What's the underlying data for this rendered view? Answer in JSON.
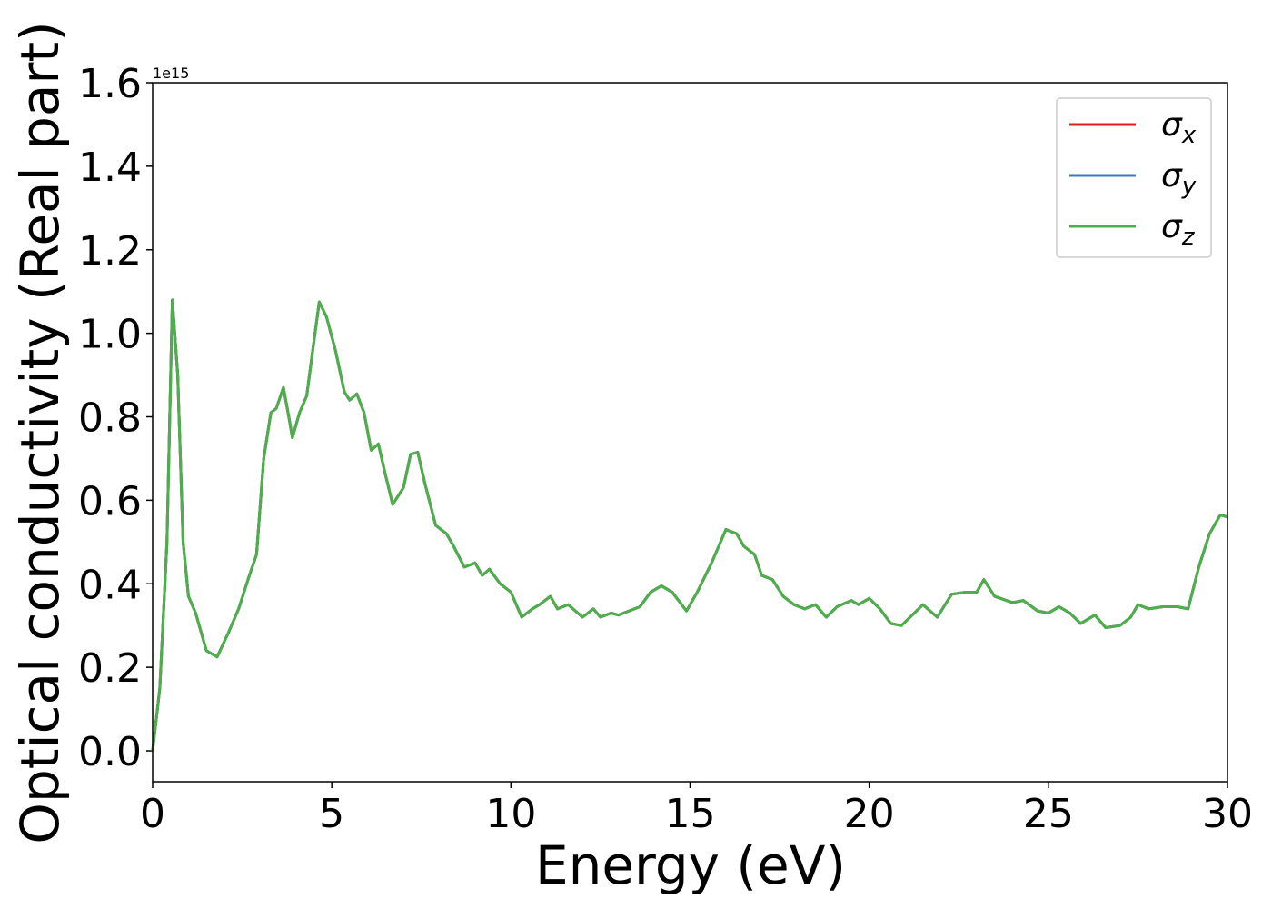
{
  "chart_data": {
    "type": "line",
    "xlabel": "Energy (eV)",
    "ylabel": "Optical conductivity (Real part)",
    "y_offset_text": "1e15",
    "x": [
      0,
      0.2,
      0.4,
      0.55,
      0.7,
      0.85,
      1.0,
      1.2,
      1.5,
      1.8,
      2.1,
      2.4,
      2.7,
      2.9,
      3.1,
      3.3,
      3.45,
      3.65,
      3.8,
      3.9,
      4.1,
      4.3,
      4.5,
      4.65,
      4.85,
      5.1,
      5.35,
      5.5,
      5.7,
      5.9,
      6.1,
      6.3,
      6.5,
      6.7,
      7.0,
      7.2,
      7.4,
      7.6,
      7.9,
      8.2,
      8.4,
      8.7,
      9.0,
      9.2,
      9.4,
      9.7,
      10.0,
      10.3,
      10.6,
      10.8,
      11.1,
      11.3,
      11.6,
      12.0,
      12.3,
      12.5,
      12.8,
      13.0,
      13.3,
      13.6,
      13.9,
      14.2,
      14.5,
      14.9,
      15.2,
      15.6,
      16.0,
      16.3,
      16.5,
      16.8,
      17.0,
      17.3,
      17.6,
      17.9,
      18.2,
      18.5,
      18.8,
      19.1,
      19.5,
      19.7,
      20.0,
      20.3,
      20.6,
      20.9,
      21.2,
      21.5,
      21.9,
      22.3,
      22.7,
      23.0,
      23.2,
      23.5,
      24.0,
      24.3,
      24.7,
      25.0,
      25.3,
      25.6,
      25.9,
      26.3,
      26.6,
      27.0,
      27.3,
      27.5,
      27.8,
      28.2,
      28.6,
      28.9,
      29.2,
      29.5,
      29.8,
      30.0
    ],
    "series": [
      {
        "name": "σx",
        "color": "#e41a1c",
        "values": [
          0,
          0.15,
          0.5,
          1.08,
          0.9,
          0.5,
          0.37,
          0.33,
          0.24,
          0.225,
          0.28,
          0.34,
          0.42,
          0.47,
          0.7,
          0.81,
          0.82,
          0.87,
          0.8,
          0.75,
          0.81,
          0.85,
          0.98,
          1.075,
          1.04,
          0.96,
          0.86,
          0.84,
          0.855,
          0.81,
          0.72,
          0.735,
          0.66,
          0.59,
          0.63,
          0.71,
          0.715,
          0.64,
          0.54,
          0.52,
          0.49,
          0.44,
          0.45,
          0.42,
          0.435,
          0.4,
          0.38,
          0.32,
          0.34,
          0.35,
          0.37,
          0.34,
          0.35,
          0.32,
          0.34,
          0.32,
          0.33,
          0.325,
          0.335,
          0.345,
          0.38,
          0.395,
          0.38,
          0.335,
          0.38,
          0.45,
          0.53,
          0.52,
          0.49,
          0.47,
          0.42,
          0.41,
          0.37,
          0.35,
          0.34,
          0.35,
          0.32,
          0.345,
          0.36,
          0.35,
          0.365,
          0.34,
          0.305,
          0.3,
          0.325,
          0.35,
          0.32,
          0.375,
          0.38,
          0.38,
          0.41,
          0.37,
          0.355,
          0.36,
          0.335,
          0.33,
          0.345,
          0.33,
          0.305,
          0.325,
          0.295,
          0.3,
          0.32,
          0.35,
          0.34,
          0.345,
          0.345,
          0.34,
          0.44,
          0.52,
          0.565,
          0.56
        ]
      },
      {
        "name": "σy",
        "color": "#377eb8",
        "values": [
          0,
          0.15,
          0.5,
          1.08,
          0.9,
          0.5,
          0.37,
          0.33,
          0.24,
          0.225,
          0.28,
          0.34,
          0.42,
          0.47,
          0.7,
          0.81,
          0.82,
          0.87,
          0.8,
          0.75,
          0.81,
          0.85,
          0.98,
          1.075,
          1.04,
          0.96,
          0.86,
          0.84,
          0.855,
          0.81,
          0.72,
          0.735,
          0.66,
          0.59,
          0.63,
          0.71,
          0.715,
          0.64,
          0.54,
          0.52,
          0.49,
          0.44,
          0.45,
          0.42,
          0.435,
          0.4,
          0.38,
          0.32,
          0.34,
          0.35,
          0.37,
          0.34,
          0.35,
          0.32,
          0.34,
          0.32,
          0.33,
          0.325,
          0.335,
          0.345,
          0.38,
          0.395,
          0.38,
          0.335,
          0.38,
          0.45,
          0.53,
          0.52,
          0.49,
          0.47,
          0.42,
          0.41,
          0.37,
          0.35,
          0.34,
          0.35,
          0.32,
          0.345,
          0.36,
          0.35,
          0.365,
          0.34,
          0.305,
          0.3,
          0.325,
          0.35,
          0.32,
          0.375,
          0.38,
          0.38,
          0.41,
          0.37,
          0.355,
          0.36,
          0.335,
          0.33,
          0.345,
          0.33,
          0.305,
          0.325,
          0.295,
          0.3,
          0.32,
          0.35,
          0.34,
          0.345,
          0.345,
          0.34,
          0.44,
          0.52,
          0.565,
          0.56
        ]
      },
      {
        "name": "σz",
        "color": "#4daf4a",
        "values": [
          0,
          0.15,
          0.5,
          1.08,
          0.9,
          0.5,
          0.37,
          0.33,
          0.24,
          0.225,
          0.28,
          0.34,
          0.42,
          0.47,
          0.7,
          0.81,
          0.82,
          0.87,
          0.8,
          0.75,
          0.81,
          0.85,
          0.98,
          1.075,
          1.04,
          0.96,
          0.86,
          0.84,
          0.855,
          0.81,
          0.72,
          0.735,
          0.66,
          0.59,
          0.63,
          0.71,
          0.715,
          0.64,
          0.54,
          0.52,
          0.49,
          0.44,
          0.45,
          0.42,
          0.435,
          0.4,
          0.38,
          0.32,
          0.34,
          0.35,
          0.37,
          0.34,
          0.35,
          0.32,
          0.34,
          0.32,
          0.33,
          0.325,
          0.335,
          0.345,
          0.38,
          0.395,
          0.38,
          0.335,
          0.38,
          0.45,
          0.53,
          0.52,
          0.49,
          0.47,
          0.42,
          0.41,
          0.37,
          0.35,
          0.34,
          0.35,
          0.32,
          0.345,
          0.36,
          0.35,
          0.365,
          0.34,
          0.305,
          0.3,
          0.325,
          0.35,
          0.32,
          0.375,
          0.38,
          0.38,
          0.41,
          0.37,
          0.355,
          0.36,
          0.335,
          0.33,
          0.345,
          0.33,
          0.305,
          0.325,
          0.295,
          0.3,
          0.32,
          0.35,
          0.34,
          0.345,
          0.345,
          0.34,
          0.44,
          0.52,
          0.565,
          0.56
        ]
      }
    ],
    "xlim": [
      0,
      30
    ],
    "xticks": [
      0,
      5,
      10,
      15,
      20,
      25,
      30
    ],
    "ylim": [
      -0.074,
      1.6
    ],
    "yticks": [
      {
        "value": 0,
        "label": "0.0"
      },
      0.2,
      0.4,
      0.6,
      0.8,
      {
        "value": 1,
        "label": "1.0"
      },
      1.2,
      1.4,
      1.6
    ],
    "grid": false,
    "legend": "upper right"
  }
}
